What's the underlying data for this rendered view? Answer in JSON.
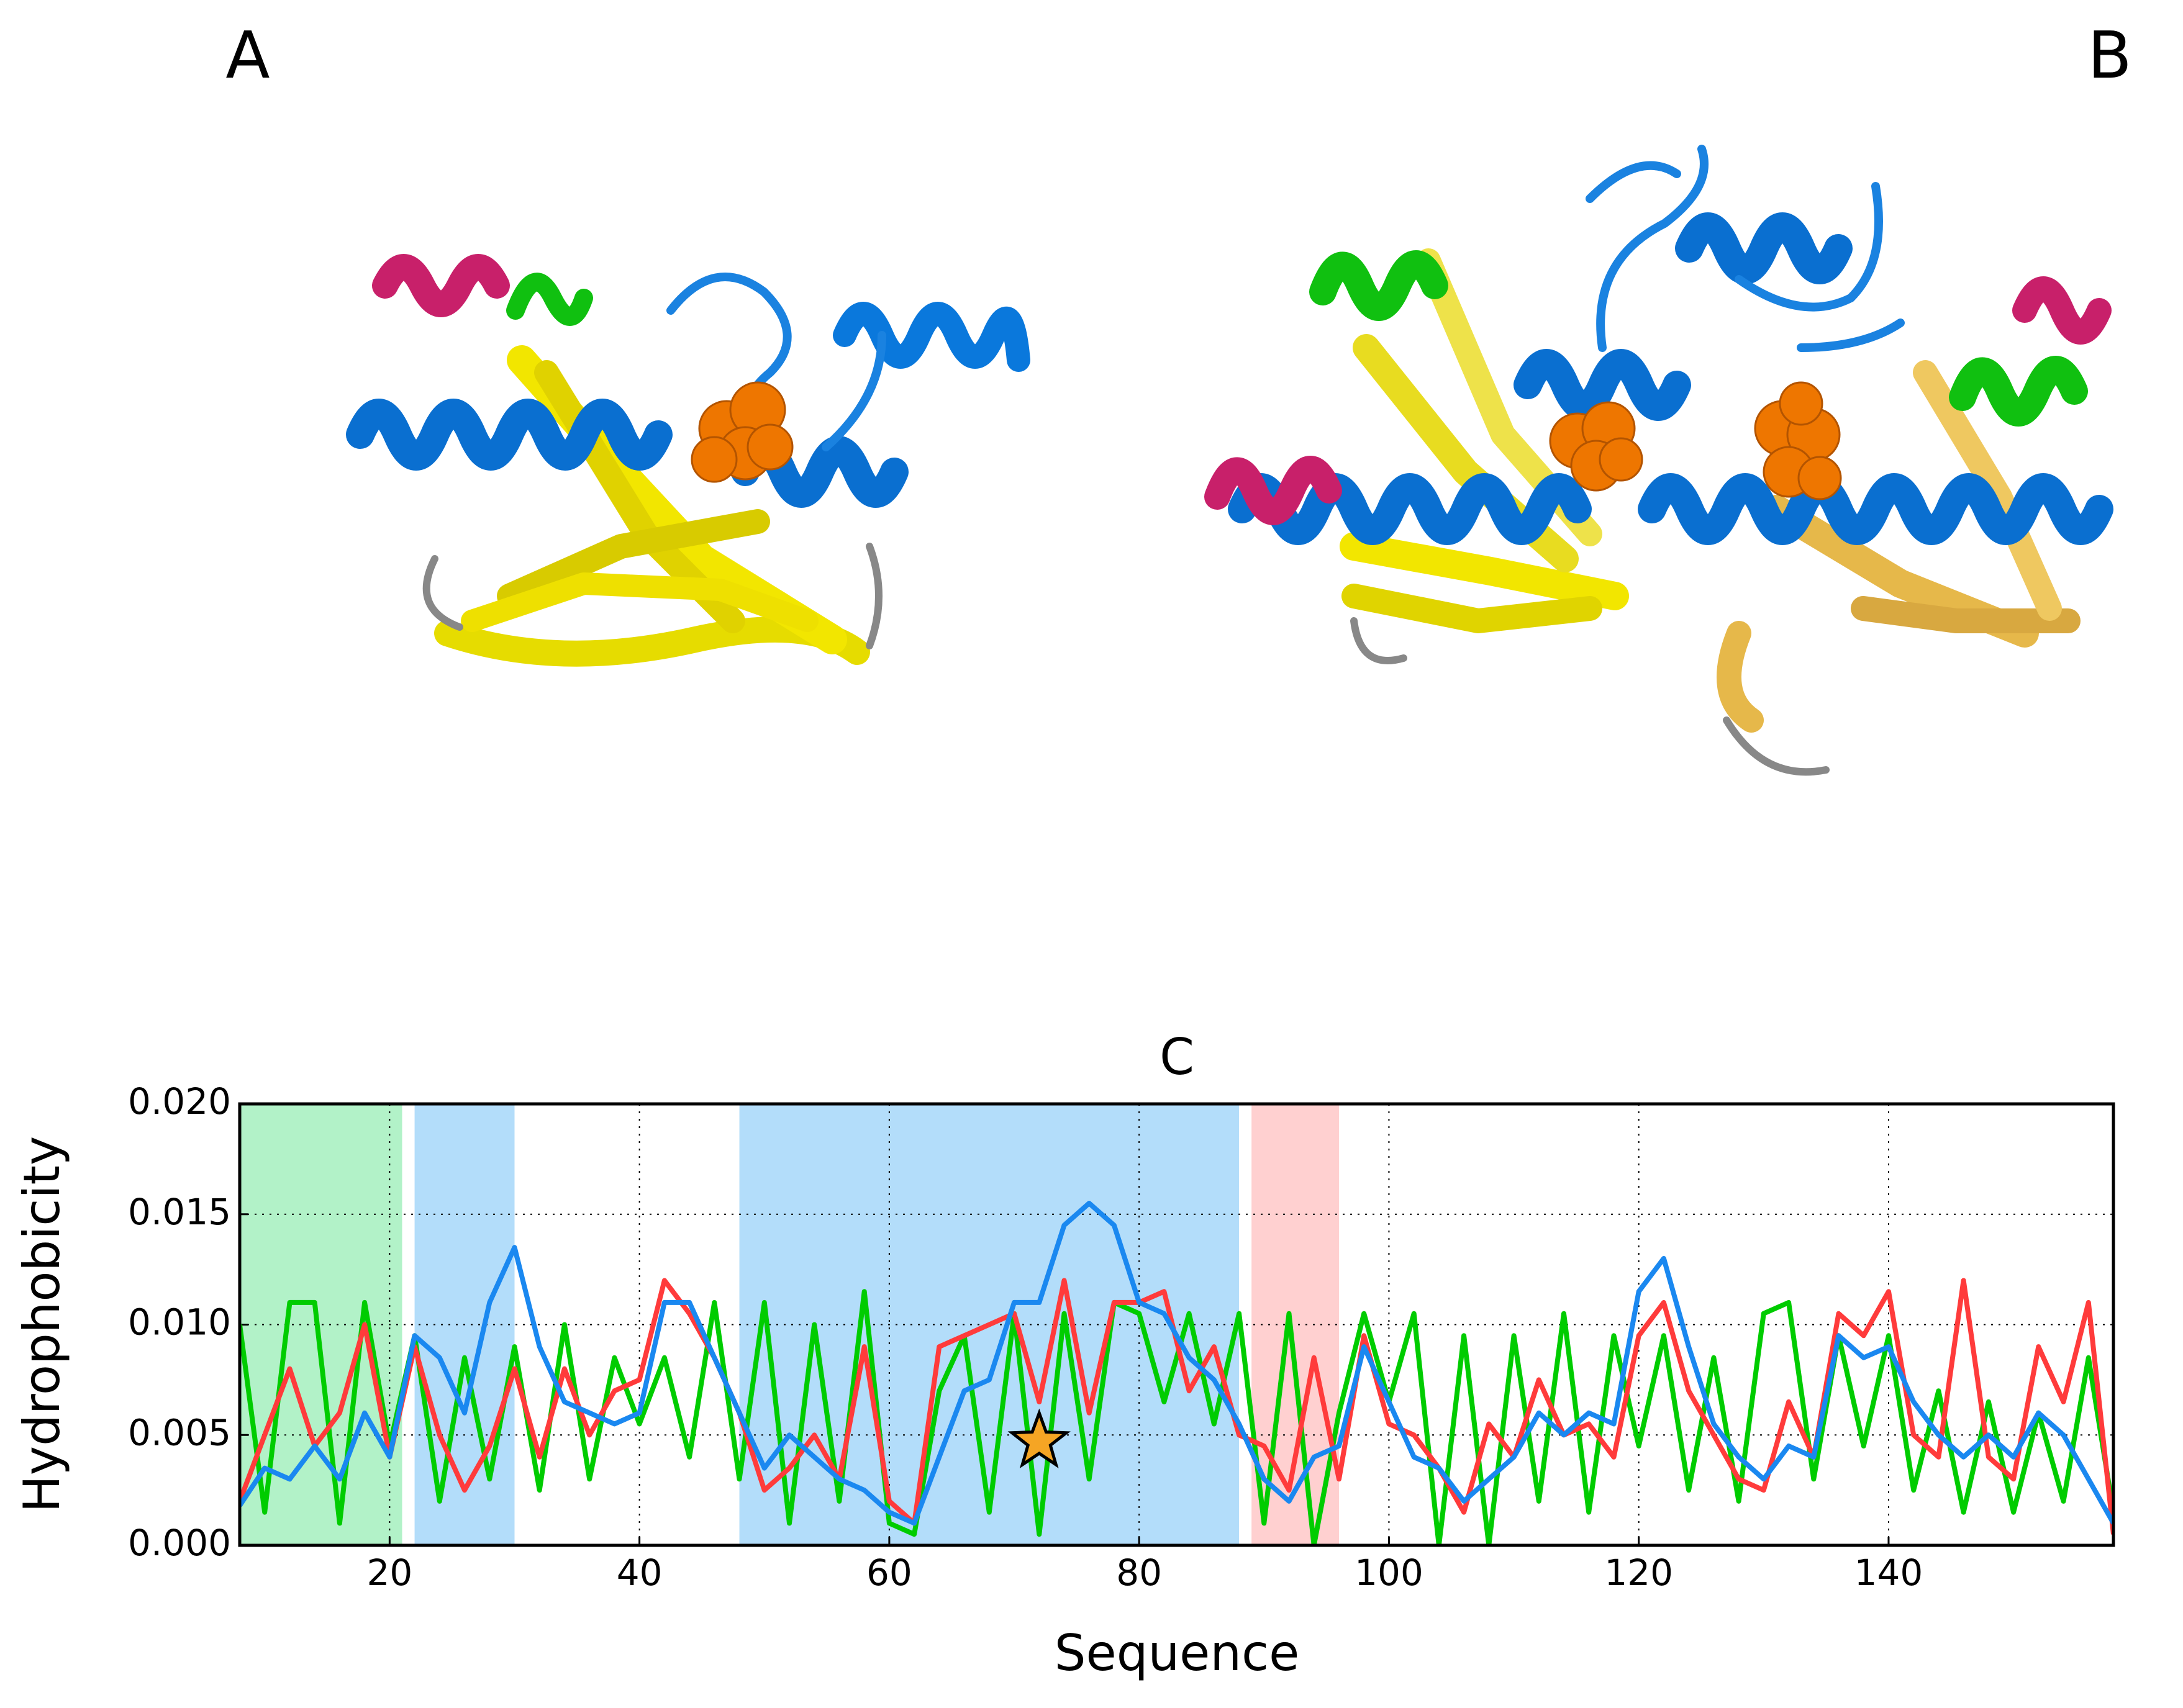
{
  "panel_labels": [
    "A",
    "B"
  ],
  "chart_data": {
    "type": "line",
    "title": "C",
    "x_label": "Sequence",
    "y_label": "Hydrophobicity",
    "xlim": [
      8,
      158
    ],
    "ylim": [
      0,
      0.02
    ],
    "xticks": [
      20,
      40,
      60,
      80,
      100,
      120,
      140
    ],
    "yticks": [
      {
        "value": 0,
        "label": "0.000"
      },
      {
        "value": 0.005,
        "label": "0.005"
      },
      {
        "value": 0.01,
        "label": "0.010"
      },
      {
        "value": 0.015,
        "label": "0.015"
      },
      {
        "value": 0.02,
        "label": "0.020"
      }
    ],
    "grid": true,
    "shaded_regions": [
      {
        "start": 8,
        "end": 21,
        "color": "#b2f2c8"
      },
      {
        "start": 22,
        "end": 30,
        "color": "#b3ddfa"
      },
      {
        "start": 48,
        "end": 88,
        "color": "#b3ddfa"
      },
      {
        "start": 89,
        "end": 96,
        "color": "#ffd0d0"
      }
    ],
    "marker": {
      "x": 72,
      "y": 0.0047,
      "color": "#f5a524"
    },
    "x": [
      8,
      10,
      12,
      14,
      16,
      18,
      20,
      22,
      24,
      26,
      28,
      30,
      32,
      34,
      36,
      38,
      40,
      42,
      44,
      46,
      48,
      50,
      52,
      54,
      56,
      58,
      60,
      62,
      64,
      66,
      68,
      70,
      72,
      74,
      76,
      78,
      80,
      82,
      84,
      86,
      88,
      90,
      92,
      94,
      96,
      98,
      100,
      102,
      104,
      106,
      108,
      110,
      112,
      114,
      116,
      118,
      120,
      122,
      124,
      126,
      128,
      130,
      132,
      134,
      136,
      138,
      140,
      142,
      144,
      146,
      148,
      150,
      152,
      154,
      156,
      158
    ],
    "series": [
      {
        "color": "#00cc00",
        "values": [
          0.01,
          0.0015,
          0.011,
          0.011,
          0.001,
          0.011,
          0.0045,
          0.0095,
          0.002,
          0.0085,
          0.003,
          0.009,
          0.0025,
          0.01,
          0.003,
          0.0085,
          0.0055,
          0.0085,
          0.004,
          0.011,
          0.003,
          0.011,
          0.001,
          0.01,
          0.002,
          0.0115,
          0.001,
          0.0005,
          0.007,
          0.0095,
          0.0015,
          0.0105,
          0.0005,
          0.0105,
          0.003,
          0.011,
          0.0105,
          0.0065,
          0.0105,
          0.0055,
          0.0105,
          0.001,
          0.0105,
          0,
          0.006,
          0.0105,
          0.0065,
          0.0105,
          0,
          0.0095,
          0,
          0.0095,
          0.002,
          0.0105,
          0.0015,
          0.0095,
          0.0045,
          0.0095,
          0.0025,
          0.0085,
          0.002,
          0.0105,
          0.011,
          0.003,
          0.0095,
          0.0045,
          0.0095,
          0.0025,
          0.007,
          0.0015,
          0.0065,
          0.0015,
          0.006,
          0.002,
          0.0085,
          0.0015
        ]
      },
      {
        "color": "#ff3b3b",
        "values": [
          0.002,
          0.005,
          0.008,
          0.0045,
          0.006,
          0.01,
          0.004,
          0.009,
          0.005,
          0.0025,
          0.0045,
          0.008,
          0.004,
          0.008,
          0.005,
          0.007,
          0.0075,
          0.012,
          0.0105,
          0.0085,
          0.006,
          0.0025,
          0.0035,
          0.005,
          0.003,
          0.009,
          0.002,
          0.001,
          0.009,
          0.0095,
          0.01,
          0.0105,
          0.0065,
          0.012,
          0.006,
          0.011,
          0.011,
          0.0115,
          0.007,
          0.009,
          0.005,
          0.0045,
          0.0025,
          0.0085,
          0.003,
          0.0095,
          0.0055,
          0.005,
          0.0035,
          0.0015,
          0.0055,
          0.004,
          0.0075,
          0.005,
          0.0055,
          0.004,
          0.0095,
          0.011,
          0.007,
          0.005,
          0.003,
          0.0025,
          0.0065,
          0.004,
          0.0105,
          0.0095,
          0.0115,
          0.005,
          0.004,
          0.012,
          0.004,
          0.003,
          0.009,
          0.0065,
          0.011,
          0.0005
        ]
      },
      {
        "color": "#1a88f0",
        "values": [
          0.0018,
          0.0035,
          0.003,
          0.0045,
          0.003,
          0.006,
          0.004,
          0.0095,
          0.0085,
          0.006,
          0.011,
          0.0135,
          0.009,
          0.0065,
          0.006,
          0.0055,
          0.006,
          0.011,
          0.011,
          0.0085,
          0.006,
          0.0035,
          0.005,
          0.004,
          0.003,
          0.0025,
          0.0015,
          0.001,
          0.004,
          0.007,
          0.0075,
          0.011,
          0.011,
          0.0145,
          0.0155,
          0.0145,
          0.011,
          0.0105,
          0.0085,
          0.0075,
          0.0055,
          0.003,
          0.002,
          0.004,
          0.0045,
          0.009,
          0.0065,
          0.004,
          0.0035,
          0.002,
          0.003,
          0.004,
          0.006,
          0.005,
          0.006,
          0.0055,
          0.0115,
          0.013,
          0.009,
          0.0055,
          0.004,
          0.003,
          0.0045,
          0.004,
          0.0095,
          0.0085,
          0.009,
          0.0065,
          0.005,
          0.004,
          0.005,
          0.004,
          0.006,
          0.005,
          0.003,
          0.001
        ]
      }
    ]
  }
}
